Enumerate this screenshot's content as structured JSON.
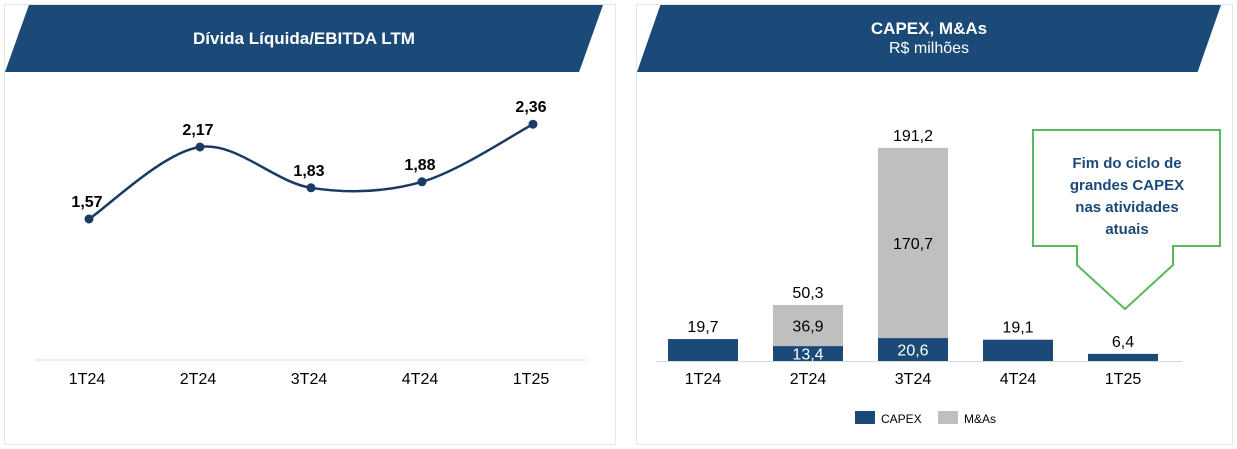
{
  "left_panel": {
    "title": "Dívida Líquida/EBITDA LTM"
  },
  "right_panel": {
    "title": "CAPEX, M&As",
    "subtitle": "R$ milhões",
    "callout": "Fim do ciclo de\ngrandes CAPEX\nnas atividades\natuais"
  },
  "colors": {
    "banner": "#1b4a78",
    "line": "#1b3a64",
    "capex": "#1b4a78",
    "mna": "#bfbfbf",
    "callout_border": "#5cb85c",
    "callout_text": "#1b4a78"
  },
  "chart_data": [
    {
      "type": "line",
      "title": "Dívida Líquida/EBITDA LTM",
      "categories": [
        "1T24",
        "2T24",
        "3T24",
        "4T24",
        "1T25"
      ],
      "values": [
        1.57,
        2.17,
        1.83,
        1.88,
        2.36
      ],
      "labels": [
        "1,57",
        "2,17",
        "1,83",
        "1,88",
        "2,36"
      ],
      "smooth": true,
      "ylim": [
        0,
        3
      ]
    },
    {
      "type": "bar",
      "stacked": true,
      "title": "CAPEX, M&As",
      "subtitle": "R$ milhões",
      "categories": [
        "1T24",
        "2T24",
        "3T24",
        "4T24",
        "1T25"
      ],
      "series": [
        {
          "name": "CAPEX",
          "values": [
            19.7,
            13.4,
            20.6,
            19.1,
            6.4
          ],
          "labels": [
            "",
            "13,4",
            "20,6",
            "",
            ""
          ]
        },
        {
          "name": "M&As",
          "values": [
            0,
            36.9,
            170.7,
            0,
            0
          ],
          "labels": [
            "",
            "36,9",
            "170,7",
            "",
            ""
          ]
        }
      ],
      "totals": [
        "19,7",
        "50,3",
        "191,2",
        "19,1",
        "6,4"
      ],
      "legend": "bottom",
      "ylim": [
        0,
        200
      ]
    }
  ]
}
